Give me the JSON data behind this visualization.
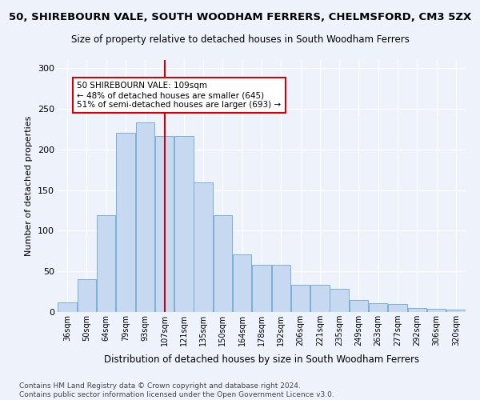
{
  "title": "50, SHIREBOURN VALE, SOUTH WOODHAM FERRERS, CHELMSFORD, CM3 5ZX",
  "subtitle": "Size of property relative to detached houses in South Woodham Ferrers",
  "xlabel": "Distribution of detached houses by size in South Woodham Ferrers",
  "ylabel": "Number of detached properties",
  "categories": [
    "36sqm",
    "50sqm",
    "64sqm",
    "79sqm",
    "93sqm",
    "107sqm",
    "121sqm",
    "135sqm",
    "150sqm",
    "164sqm",
    "178sqm",
    "192sqm",
    "206sqm",
    "221sqm",
    "235sqm",
    "249sqm",
    "263sqm",
    "277sqm",
    "292sqm",
    "306sqm",
    "320sqm"
  ],
  "bar_heights": [
    12,
    40,
    119,
    220,
    233,
    217,
    217,
    159,
    119,
    71,
    58,
    58,
    33,
    33,
    29,
    15,
    11,
    10,
    5,
    4,
    3
  ],
  "bar_color": "#c6d9f1",
  "bar_edge_color": "#7bafd4",
  "vline_x": 5,
  "vline_color": "#cc0000",
  "annotation_text": "50 SHIREBOURN VALE: 109sqm\n← 48% of detached houses are smaller (645)\n51% of semi-detached houses are larger (693) →",
  "annotation_box_color": "white",
  "annotation_box_edge": "#cc0000",
  "ylim": [
    0,
    310
  ],
  "yticks": [
    0,
    50,
    100,
    150,
    200,
    250,
    300
  ],
  "footnote": "Contains HM Land Registry data © Crown copyright and database right 2024.\nContains public sector information licensed under the Open Government Licence v3.0.",
  "background_color": "#eef2fb",
  "grid_color": "#ffffff",
  "title_fontsize": 9.5,
  "subtitle_fontsize": 8.5,
  "xlabel_fontsize": 8.5,
  "ylabel_fontsize": 8,
  "footnote_fontsize": 6.5
}
